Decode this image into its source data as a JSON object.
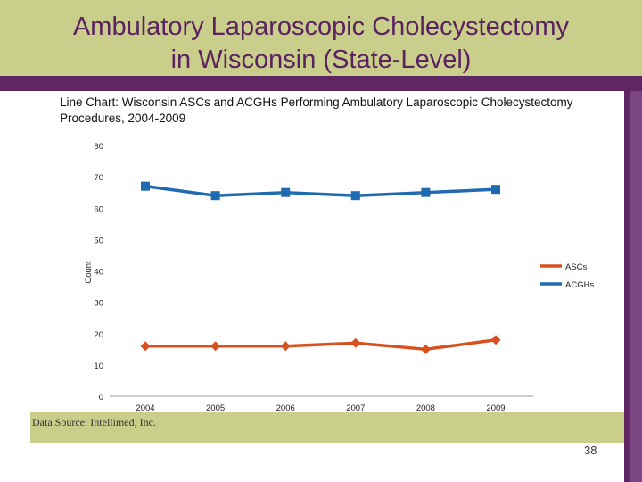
{
  "slide": {
    "title_line1": "Ambulatory Laparoscopic Cholecystectomy",
    "title_line2": "in Wisconsin (State-Level)",
    "data_source": "Data Source: Intellimed, Inc.",
    "page_number": "38"
  },
  "colors": {
    "title": "#5b2161",
    "band": "#c9cf8a",
    "accent_purple": "#5f2664",
    "ascs": "#d8511d",
    "acghs": "#1f6ab0"
  },
  "chart_data": {
    "type": "line",
    "title": "Line Chart: Wisconsin ASCs and ACGHs Performing Ambulatory Laparoscopic Cholecystectomy Procedures, 2004-2009",
    "xlabel": "",
    "ylabel": "Count",
    "categories": [
      "2004",
      "2005",
      "2006",
      "2007",
      "2008",
      "2009"
    ],
    "ylim": [
      0,
      80
    ],
    "yticks": [
      "0",
      "10",
      "20",
      "30",
      "40",
      "50",
      "60",
      "70",
      "80"
    ],
    "series": [
      {
        "name": "ASCs",
        "marker": "diamond",
        "color": "#d8511d",
        "values": [
          16,
          16,
          16,
          17,
          15,
          18
        ]
      },
      {
        "name": "ACGHs",
        "marker": "square",
        "color": "#1f6ab0",
        "values": [
          67,
          64,
          65,
          64,
          65,
          66
        ]
      }
    ]
  }
}
